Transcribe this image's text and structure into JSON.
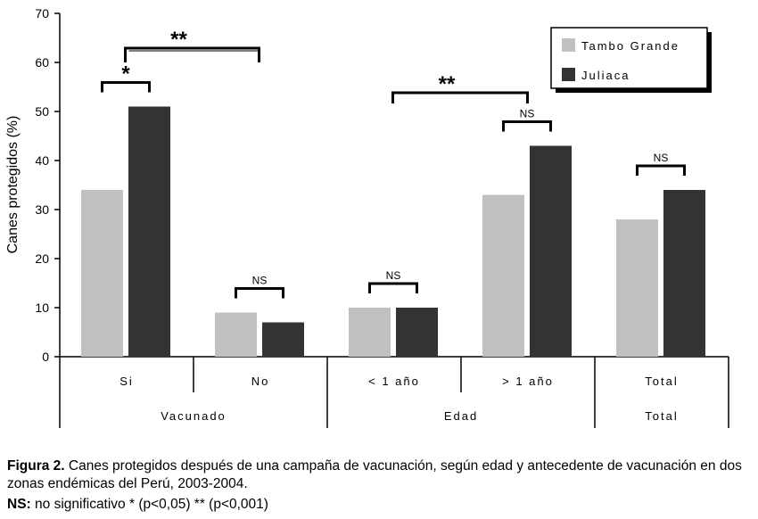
{
  "colors": {
    "tambo_grande": "#c0c0c0",
    "juliaca": "#333333"
  },
  "caption": {
    "fig_label": "Figura 2.",
    "fig_text": "Canes protegidos después de una campaña de vacunación, según edad y antecedente de vacunación en dos zonas endémicas del Perú, 2003-2004.",
    "ns_label": "NS:",
    "ns_text": "no significativo * (p<0,05) ** (p<0,001)"
  },
  "chart_data": {
    "type": "bar",
    "ylabel": "Canes protegidos (%)",
    "ylim": [
      0,
      70
    ],
    "yticks": [
      0,
      10,
      20,
      30,
      40,
      50,
      60,
      70
    ],
    "grid": false,
    "legend_position": "top-right",
    "categories": [
      "Si",
      "No",
      "< 1 año",
      "> 1 año",
      "Total"
    ],
    "groups": [
      {
        "label": "Vacunado",
        "categories": [
          "Si",
          "No"
        ]
      },
      {
        "label": "Edad",
        "categories": [
          "< 1 año",
          "> 1 año"
        ]
      },
      {
        "label": "Total",
        "categories": [
          "Total"
        ]
      }
    ],
    "series": [
      {
        "name": "Tambo Grande",
        "values": [
          34,
          9,
          10,
          33,
          28
        ]
      },
      {
        "name": "Juliaca",
        "values": [
          51,
          7,
          10,
          43,
          34
        ]
      }
    ],
    "annotations": [
      {
        "type": "within",
        "category": "Si",
        "label": "*"
      },
      {
        "type": "within",
        "category": "No",
        "label": "NS"
      },
      {
        "type": "within",
        "category": "< 1 año",
        "label": "NS"
      },
      {
        "type": "within",
        "category": "> 1 año",
        "label": "NS"
      },
      {
        "type": "within",
        "category": "Total",
        "label": "NS"
      },
      {
        "type": "between",
        "from": "Si",
        "to": "No",
        "label": "**"
      },
      {
        "type": "between",
        "from": "< 1 año",
        "to": "> 1 año",
        "label": "**"
      }
    ]
  }
}
